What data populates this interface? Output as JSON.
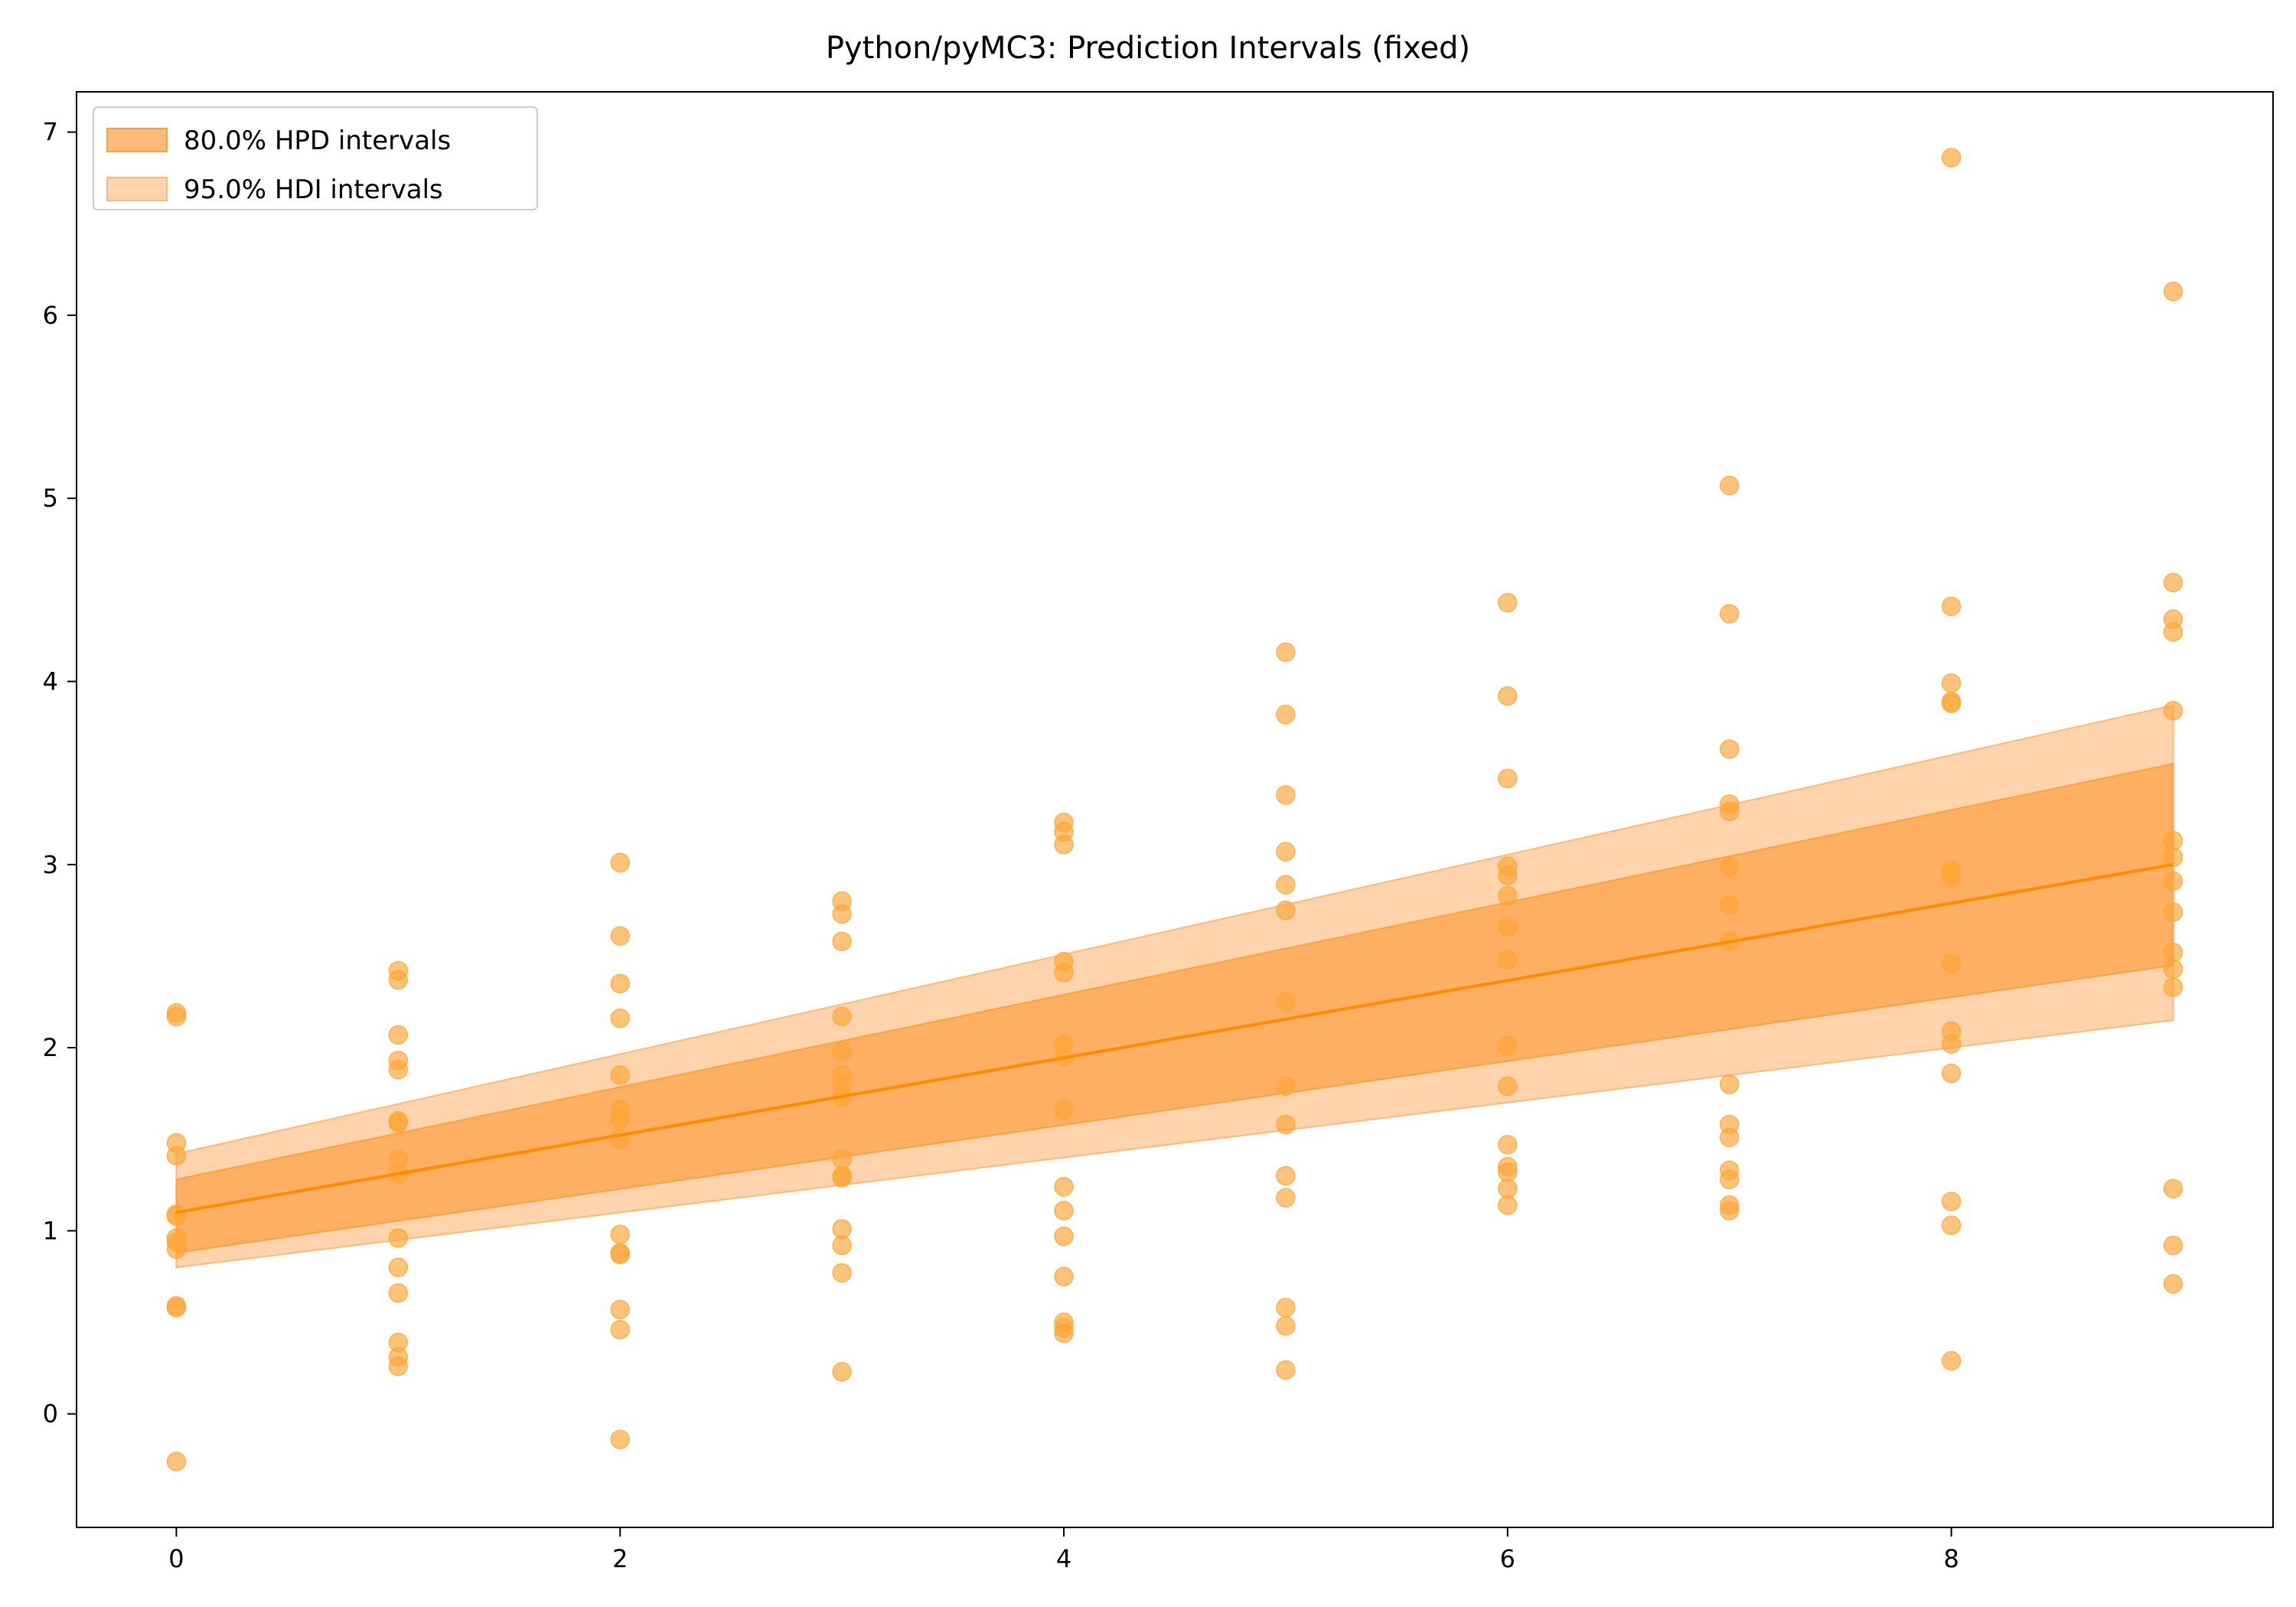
{
  "chart_data": {
    "type": "scatter",
    "title": "Python/pyMC3: Prediction Intervals (fixed)",
    "xlabel": "",
    "ylabel": "",
    "xlim": [
      -0.45,
      9.45
    ],
    "ylim": [
      -0.62,
      7.22
    ],
    "xticks": [
      0,
      2,
      4,
      6,
      8
    ],
    "yticks": [
      0,
      1,
      2,
      3,
      4,
      5,
      6,
      7
    ],
    "grid": false,
    "legend_position": "top-left",
    "colors": {
      "line": "#ff8c00",
      "points": "#ffa534",
      "hpd_band": "#ffa040",
      "hdi_band": "#ffb877"
    },
    "legend": [
      {
        "label": "80.0% HPD intervals",
        "series": "hpd"
      },
      {
        "label": "95.0% HDI intervals",
        "series": "hdi"
      }
    ],
    "mean_line": {
      "x": [
        0,
        9
      ],
      "y": [
        1.1,
        3.0
      ]
    },
    "hpd_interval": {
      "x": [
        0,
        9
      ],
      "lower": [
        0.88,
        2.45
      ],
      "upper": [
        1.28,
        3.55
      ]
    },
    "hdi_interval": {
      "x": [
        0,
        9
      ],
      "lower": [
        0.8,
        2.15
      ],
      "upper": [
        1.42,
        3.87
      ]
    },
    "points": [
      {
        "x": 0,
        "y": [
          2.19,
          2.17,
          1.48,
          1.41,
          1.09,
          1.08,
          0.96,
          0.94,
          0.9,
          0.59,
          0.58,
          -0.26
        ]
      },
      {
        "x": 1,
        "y": [
          2.42,
          2.37,
          2.07,
          1.93,
          1.88,
          1.6,
          1.59,
          1.39,
          1.31,
          0.96,
          0.8,
          0.66,
          0.39,
          0.31,
          0.26
        ]
      },
      {
        "x": 2,
        "y": [
          3.01,
          2.61,
          2.35,
          2.16,
          1.85,
          1.66,
          1.61,
          1.5,
          0.98,
          0.88,
          0.87,
          0.57,
          0.46,
          -0.14
        ]
      },
      {
        "x": 3,
        "y": [
          2.8,
          2.73,
          2.58,
          2.17,
          1.98,
          1.85,
          1.8,
          1.73,
          1.39,
          1.3,
          1.29,
          1.01,
          0.92,
          0.77,
          0.23
        ]
      },
      {
        "x": 4,
        "y": [
          3.23,
          3.18,
          3.11,
          2.47,
          2.41,
          2.02,
          1.95,
          1.66,
          1.24,
          1.11,
          0.97,
          0.75,
          0.5,
          0.47,
          0.44
        ]
      },
      {
        "x": 5,
        "y": [
          4.16,
          3.82,
          3.38,
          3.07,
          2.89,
          2.75,
          2.25,
          1.79,
          1.58,
          1.3,
          1.18,
          0.58,
          0.48,
          0.24
        ]
      },
      {
        "x": 6,
        "y": [
          4.43,
          3.92,
          3.47,
          2.99,
          2.94,
          2.83,
          2.66,
          2.48,
          2.01,
          1.79,
          1.47,
          1.35,
          1.32,
          1.23,
          1.14
        ]
      },
      {
        "x": 7,
        "y": [
          5.07,
          4.37,
          3.63,
          3.33,
          3.29,
          2.99,
          2.78,
          2.58,
          1.8,
          1.58,
          1.51,
          1.33,
          1.28,
          1.14,
          1.11
        ]
      },
      {
        "x": 8,
        "y": [
          6.86,
          4.41,
          3.99,
          3.89,
          3.88,
          2.97,
          2.95,
          2.93,
          2.46,
          2.09,
          2.02,
          1.86,
          1.16,
          1.03,
          0.29
        ]
      },
      {
        "x": 9,
        "y": [
          6.13,
          4.54,
          4.34,
          4.27,
          3.84,
          3.13,
          3.04,
          2.91,
          2.74,
          2.52,
          2.43,
          2.33,
          1.23,
          0.92,
          0.71
        ]
      }
    ]
  }
}
